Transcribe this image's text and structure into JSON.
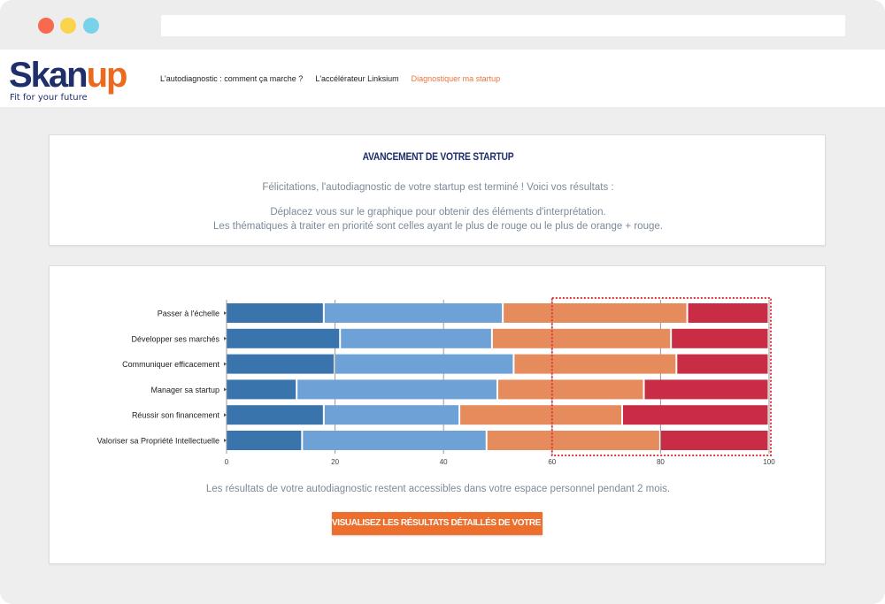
{
  "browser": {
    "url": ""
  },
  "brand": {
    "logo_part1": "Skan",
    "logo_part2": "up",
    "tagline": "Fit for your future"
  },
  "nav": {
    "items": [
      {
        "label": "L'autodiagnostic : comment ça marche ?"
      },
      {
        "label": "L'accélérateur Linksium"
      },
      {
        "label": "Diagnostiquer ma startup"
      }
    ],
    "active_color": "#e8743b"
  },
  "intro": {
    "title": "AVANCEMENT DE VOTRE STARTUP",
    "congrats": "Félicitations, l'autodiagnostic de votre startup est terminé ! Voici vos résultats :",
    "hint_line1": "Déplacez vous sur le graphique pour obtenir des éléments d'interprétation.",
    "hint_line2": "Les thématiques à traiter en priorité sont celles ayant le plus de rouge ou le plus de orange + rouge."
  },
  "chart_data": {
    "type": "bar",
    "orientation": "horizontal",
    "stacked": true,
    "categories": [
      "Passer à l'échelle",
      "Développer ses marchés",
      "Communiquer efficacement",
      "Manager sa startup",
      "Réussir son financement",
      "Valoriser sa Propriété Intellectuelle"
    ],
    "series": [
      {
        "values": [
          18,
          21,
          20,
          13,
          18,
          14
        ],
        "color": "#3a74ad"
      },
      {
        "values": [
          33,
          28,
          33,
          37,
          25,
          34
        ],
        "color": "#6ea1d6"
      },
      {
        "values": [
          34,
          33,
          30,
          27,
          30,
          32
        ],
        "color": "#e68b5c"
      },
      {
        "values": [
          15,
          18,
          17,
          23,
          27,
          20
        ],
        "color": "#c92d46"
      }
    ],
    "x_ticks": [
      0,
      20,
      40,
      60,
      80,
      100
    ],
    "xlim": [
      0,
      100
    ],
    "highlight_range": [
      60,
      100
    ],
    "highlight_color": "#d9383c",
    "grid": true
  },
  "footer": {
    "note": "Les résultats de votre autodiagnostic restent accessibles dans votre espace personnel pendant 2 mois.",
    "cta_label": "VISUALISEZ LES RÉSULTATS DÉTAILLÉS DE VOTRE DIAGNOSTIC"
  }
}
